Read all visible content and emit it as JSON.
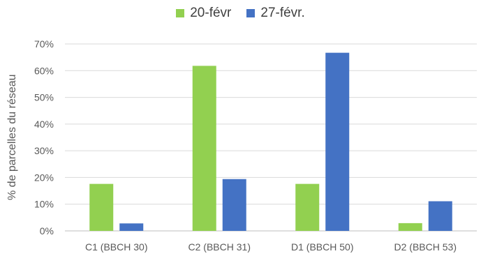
{
  "legend": [
    {
      "name": "20-févr",
      "color": "#92D050"
    },
    {
      "name": "27-févr.",
      "color": "#4472C4"
    }
  ],
  "chart_data": {
    "type": "bar",
    "categories": [
      "C1 (BBCH 30)",
      "C2 (BBCH 31)",
      "D1 (BBCH 50)",
      "D2 (BBCH 53)"
    ],
    "series": [
      {
        "name": "20-févr",
        "color": "#92D050",
        "values": [
          17.6,
          61.8,
          17.6,
          2.9
        ]
      },
      {
        "name": "27-févr.",
        "color": "#4472C4",
        "values": [
          2.8,
          19.4,
          66.7,
          11.1
        ]
      }
    ],
    "title": "",
    "xlabel": "",
    "ylabel": "% de parcelles du réseau",
    "ylim": [
      0,
      70
    ],
    "yticks": [
      "0%",
      "10%",
      "20%",
      "30%",
      "40%",
      "50%",
      "60%",
      "70%"
    ],
    "grid": true,
    "legend_position": "top"
  }
}
